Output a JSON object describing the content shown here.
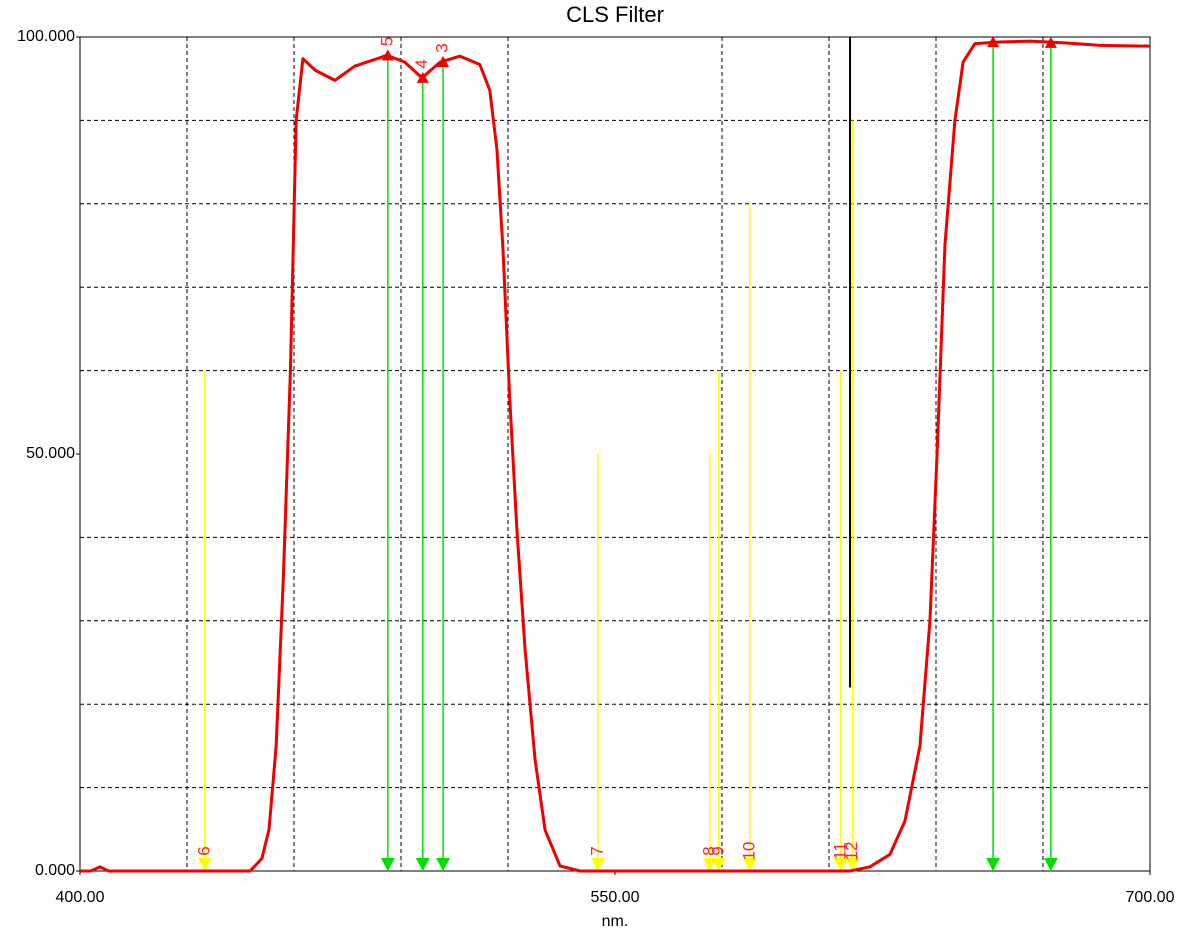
{
  "chart_data": {
    "type": "line",
    "title": "CLS Filter",
    "x_label": "nm.",
    "xlim": [
      400,
      700
    ],
    "ylim": [
      0,
      100
    ],
    "xticks": [
      {
        "value": 400,
        "label": "400.00"
      },
      {
        "value": 550,
        "label": "550.00"
      },
      {
        "value": 700,
        "label": "700.00"
      }
    ],
    "yticks": [
      {
        "value": 0,
        "label": "0.000"
      },
      {
        "value": 50,
        "label": "50.000"
      },
      {
        "value": 100,
        "label": "100.000"
      }
    ],
    "xgrid": [
      430,
      460,
      490,
      520,
      580,
      610,
      640,
      670
    ],
    "ygrid": [
      10,
      20,
      30,
      40,
      60,
      70,
      80,
      90
    ],
    "grid": true,
    "series": [
      {
        "color": "#ee0000",
        "x": [
          400,
          403,
          405.6,
          408,
          412,
          447.7,
          451,
          453,
          455,
          457,
          459,
          460.6,
          462.5,
          466,
          471.5,
          477,
          486.1,
          491,
          495.9,
          501,
          506.5,
          512.1,
          514.9,
          516.9,
          518.6,
          520.5,
          522.5,
          524.8,
          527.6,
          530.4,
          534.6,
          540.2,
          613.1,
          615.9,
          621.5,
          627.1,
          631.3,
          635.5,
          638.3,
          640.3,
          642.5,
          645.3,
          647.6,
          650.9,
          657.9,
          666.3,
          676,
          686,
          700
        ],
        "values": [
          0,
          0,
          0.5,
          0,
          0,
          0,
          1.5,
          5,
          15,
          35,
          60,
          90,
          97.4,
          96,
          94.8,
          96.5,
          97.8,
          97,
          95.1,
          97,
          97.7,
          96.7,
          93.6,
          86.5,
          74.5,
          56.5,
          40.9,
          26.5,
          13.3,
          4.9,
          0.6,
          0,
          0,
          0,
          0.5,
          2,
          6,
          15,
          30,
          50,
          75,
          90,
          97,
          99.2,
          99.4,
          99.5,
          99.3,
          99,
          98.9
        ]
      }
    ],
    "cursors": [
      {
        "label": "6",
        "x": 435,
        "top": 60,
        "color": "#ffff00"
      },
      {
        "label": "5",
        "x": 486.3,
        "top": 97.8,
        "color": "#00e000"
      },
      {
        "label": "4",
        "x": 496.1,
        "top": 95.1,
        "color": "#00e000"
      },
      {
        "label": "3",
        "x": 501.8,
        "top": 97,
        "color": "#00e000"
      },
      {
        "label": "7",
        "x": 545.2,
        "top": 50,
        "color": "#ffff00"
      },
      {
        "label": "8",
        "x": 576.6,
        "top": 50,
        "color": "#ffff00"
      },
      {
        "label": "9",
        "x": 579.1,
        "top": 60,
        "color": "#ffff00"
      },
      {
        "label": "10",
        "x": 587.8,
        "top": 80,
        "color": "#ffff00"
      },
      {
        "label": "11",
        "x": 613.3,
        "top": 60,
        "color": "#ffff00"
      },
      {
        "label": "12",
        "x": 616.6,
        "top": 90,
        "color": "#ffff00"
      },
      {
        "x": 615.9,
        "bottom": 22,
        "top": 100,
        "color": "#000000"
      },
      {
        "x": 656,
        "top": 99.4,
        "color": "#00e000"
      },
      {
        "x": 672.2,
        "top": 99.3,
        "color": "#00e000"
      }
    ]
  }
}
